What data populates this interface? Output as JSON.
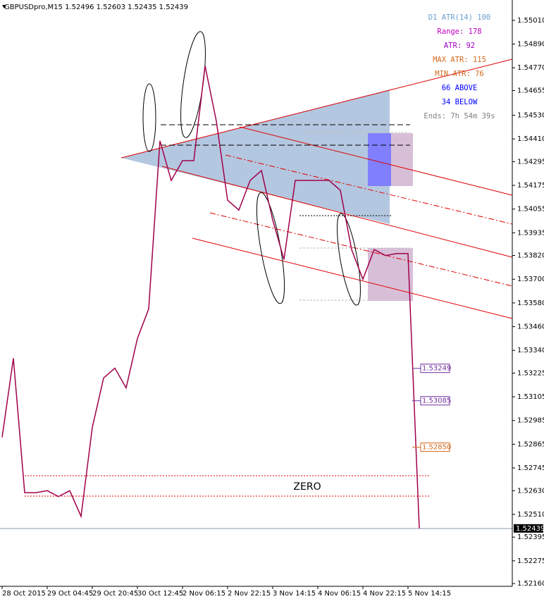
{
  "chart_data": {
    "type": "line",
    "title": "GBPUSDpro,M15  1.52496 1.52603 1.52435 1.52439",
    "info": [
      {
        "text": "D1 ATR(14) 100",
        "color": "#6a9fd0"
      },
      {
        "text": "Range: 178",
        "color": "#c000c0"
      },
      {
        "text": "ATR: 92",
        "color": "#a000c0"
      },
      {
        "text": "MAX ATR: 115",
        "color": "#d2691e"
      },
      {
        "text": "MIN ATR: 76",
        "color": "#d2691e"
      },
      {
        "text": "66 ABOVE",
        "color": "#0000ff"
      },
      {
        "text": "34 BELOW",
        "color": "#0000ff"
      },
      {
        "text": "Ends: 7h 54m 39s",
        "color": "#808080"
      }
    ],
    "annotation": "ZERO",
    "color": "#a0004a",
    "values": [
      1.529,
      1.533,
      1.5262,
      1.5262,
      1.5263,
      1.526,
      1.5263,
      1.525,
      1.5295,
      1.532,
      1.5325,
      1.5315,
      1.534,
      1.5355,
      1.544,
      1.542,
      1.543,
      1.543,
      1.5478,
      1.545,
      1.541,
      1.5405,
      1.542,
      1.5425,
      1.54,
      1.538,
      1.542,
      1.542,
      1.542,
      1.542,
      1.5415,
      1.5385,
      1.537,
      1.5385,
      1.5382,
      1.5383,
      1.5383,
      1.5244
    ],
    "current_price": 1.52439,
    "price_labels": [
      {
        "value": 1.53249,
        "color": "#7030a0"
      },
      {
        "value": 1.53085,
        "color": "#7030a0"
      },
      {
        "value": {
          "value": 1.5285,
          "label": "1.52850"
        },
        "color": "#d2691e"
      }
    ],
    "xlim": [
      -0.1875,
      45.25
    ],
    "xticks": [
      {
        "value": 0,
        "label": "28 Oct 2015"
      },
      {
        "value": 4,
        "label": "29 Oct 04:45"
      },
      {
        "value": 8,
        "label": "29 Oct 20:45"
      },
      {
        "value": 12,
        "label": "30 Oct 12:45"
      },
      {
        "value": 16,
        "label": "2 Nov 06:15"
      },
      {
        "value": 20,
        "label": "2 Nov 22:15"
      },
      {
        "value": 24,
        "label": "3 Nov 14:15"
      },
      {
        "value": 28,
        "label": "4 Nov 06:15"
      },
      {
        "value": 32,
        "label": "4 Nov 22:15"
      },
      {
        "value": 36,
        "label": "5 Nov 14:15"
      }
    ],
    "ylim": [
      1.52146,
      1.55113
    ],
    "yticks": [
      {
        "value": 1.5501,
        "label": "1.55010"
      },
      {
        "value": 1.5489,
        "label": "1.54890"
      },
      {
        "value": 1.5477,
        "label": "1.54770"
      },
      1.54655,
      {
        "value": 1.5453,
        "label": "1.54530"
      },
      {
        "value": 1.5441,
        "label": "1.54410"
      },
      1.54295,
      1.54175,
      1.54055,
      1.53935,
      {
        "value": 1.5382,
        "label": "1.53820"
      },
      {
        "value": 1.537,
        "label": "1.53700"
      },
      {
        "value": 1.5358,
        "label": "1.53580"
      },
      {
        "value": 1.5346,
        "label": "1.53460"
      },
      {
        "value": 1.5334,
        "label": "1.53340"
      },
      1.53225,
      1.53105,
      1.52985,
      1.52865,
      1.52745,
      {
        "value": 1.5263,
        "label": "1.52630"
      },
      {
        "value": 1.5251,
        "label": "1.52510"
      },
      1.52395,
      1.52275,
      {
        "value": 1.5216,
        "label": "1.52160"
      }
    ]
  }
}
